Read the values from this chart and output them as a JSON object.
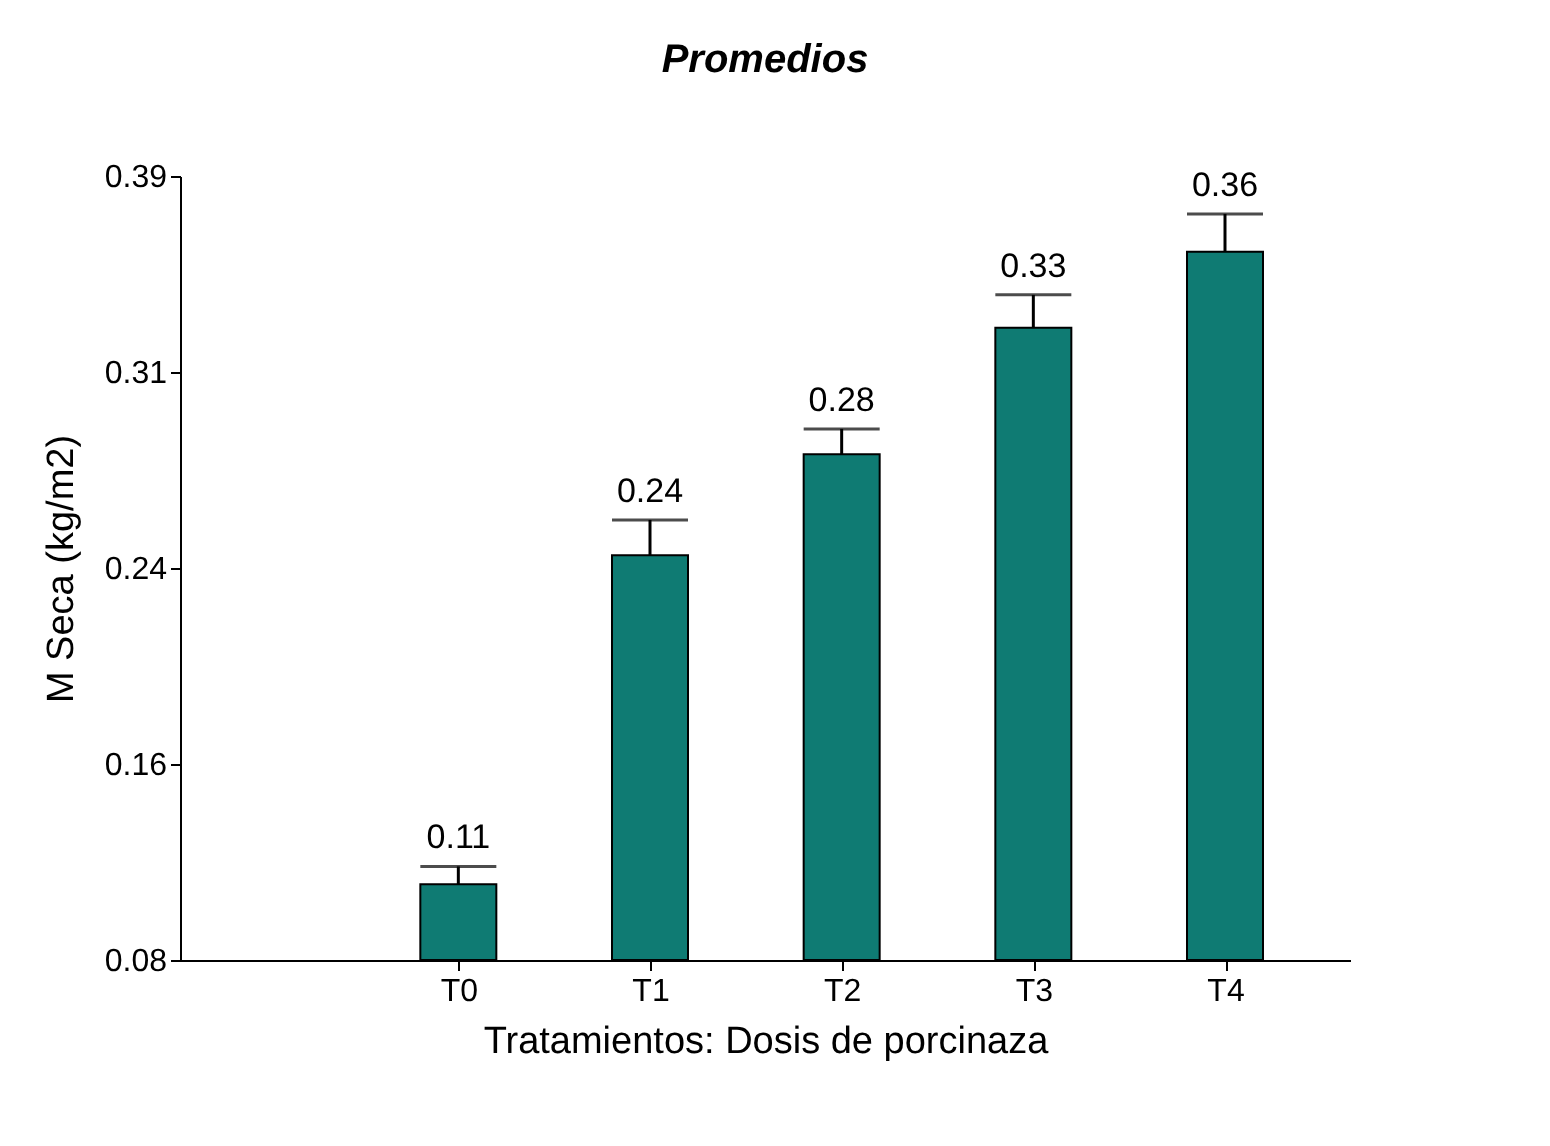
{
  "chart_data": {
    "type": "bar",
    "title": "Promedios",
    "xlabel": "Tratamientos: Dosis de porcinaza",
    "ylabel": "M Seca (kg/m2)",
    "categories": [
      "T0",
      "T1",
      "T2",
      "T3",
      "T4"
    ],
    "values": [
      0.11,
      0.24,
      0.28,
      0.33,
      0.36
    ],
    "errors": [
      [
        0.11,
        0.117
      ],
      [
        0.24,
        0.254
      ],
      [
        0.28,
        0.29
      ],
      [
        0.33,
        0.343
      ],
      [
        0.36,
        0.375
      ]
    ],
    "color": "#0f7b73",
    "data_labels": true,
    "grid": false,
    "ylim": [
      0.08,
      0.39
    ],
    "yticks": [
      {
        "value": 0.08,
        "label": "0.08"
      },
      {
        "value": 0.1575,
        "label": "0.16"
      },
      {
        "value": 0.235,
        "label": "0.24"
      },
      {
        "value": 0.3125,
        "label": "0.31"
      },
      {
        "value": 0.39,
        "label": "0.39"
      }
    ]
  }
}
